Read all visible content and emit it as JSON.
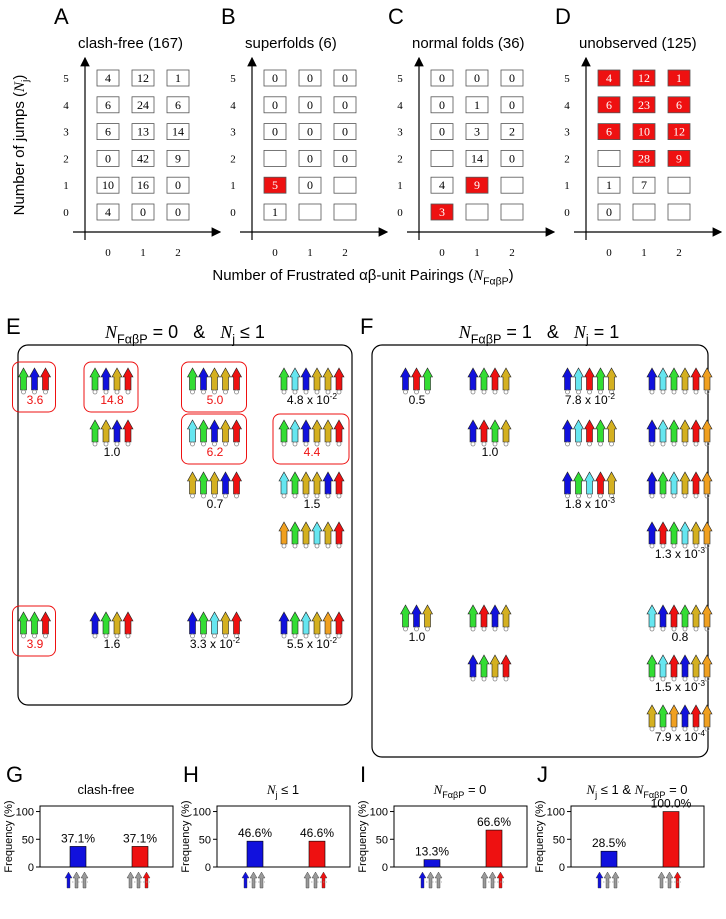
{
  "grid_axes": {
    "y_label": [
      {
        "text": "Number of jumps ("
      },
      {
        "text": "N",
        "italic": true
      },
      {
        "text": "j",
        "sub": true
      },
      {
        "text": ")"
      }
    ],
    "x_label": [
      {
        "text": "Number of Frustrated αβ-unit Pairings ("
      },
      {
        "text": "N",
        "italic": true
      },
      {
        "text": "FαβP",
        "sub": true
      },
      {
        "text": ")"
      }
    ],
    "xticks": [
      0,
      1,
      2
    ],
    "yticks": [
      0,
      1,
      2,
      3,
      4,
      5
    ],
    "highlight_color": "#ee1111"
  },
  "grid_panels": [
    {
      "letter": "A",
      "title": "clash-free (167)",
      "cells": [
        [
          4,
          0,
          0
        ],
        [
          10,
          16,
          0
        ],
        [
          0,
          42,
          9
        ],
        [
          6,
          13,
          14
        ],
        [
          6,
          24,
          6
        ],
        [
          4,
          12,
          1
        ]
      ],
      "highlighted": []
    },
    {
      "letter": "B",
      "title": "superfolds (6)",
      "cells": [
        [
          1,
          null,
          null
        ],
        [
          5,
          0,
          null
        ],
        [
          null,
          0,
          0
        ],
        [
          0,
          0,
          0
        ],
        [
          0,
          0,
          0
        ],
        [
          0,
          0,
          0
        ]
      ],
      "highlighted": [
        [
          1,
          0
        ]
      ]
    },
    {
      "letter": "C",
      "title": "normal folds (36)",
      "cells": [
        [
          3,
          null,
          null
        ],
        [
          4,
          9,
          null
        ],
        [
          null,
          14,
          0
        ],
        [
          0,
          3,
          2
        ],
        [
          0,
          1,
          0
        ],
        [
          0,
          0,
          0
        ]
      ],
      "highlighted": [
        [
          0,
          0
        ],
        [
          1,
          1
        ]
      ]
    },
    {
      "letter": "D",
      "title": "unobserved (125)",
      "cells": [
        [
          0,
          null,
          null
        ],
        [
          1,
          7,
          null
        ],
        [
          null,
          28,
          9
        ],
        [
          6,
          10,
          12
        ],
        [
          6,
          23,
          6
        ],
        [
          4,
          12,
          1
        ]
      ],
      "highlighted": [
        [
          2,
          1
        ],
        [
          2,
          2
        ],
        [
          3,
          0
        ],
        [
          3,
          1
        ],
        [
          3,
          2
        ],
        [
          4,
          0
        ],
        [
          4,
          1
        ],
        [
          4,
          2
        ],
        [
          5,
          0
        ],
        [
          5,
          1
        ],
        [
          5,
          2
        ]
      ]
    }
  ],
  "arrow_colors": {
    "b": "#1111dd",
    "g": "#33dd33",
    "r": "#ee1111",
    "y": "#d4b020",
    "c": "#66e6f0",
    "o": "#f0a020"
  },
  "topology_panels": [
    {
      "letter": "E",
      "title": [
        {
          "text": "N",
          "italic": true
        },
        {
          "text": "FαβP",
          "sub": true
        },
        {
          "text": " = 0   &   "
        },
        {
          "text": "N",
          "italic": true
        },
        {
          "text": "j",
          "sub": true
        },
        {
          "text": " ≤ 1"
        }
      ],
      "items": [
        {
          "strands": "gbr",
          "highlight": true,
          "label": "3.6"
        },
        {
          "strands": "ggr",
          "highlight": true,
          "label": "3.9"
        },
        {
          "strands": "gbyr",
          "highlight": true,
          "label": "14.8"
        },
        {
          "strands": "gybr",
          "label": "1.0"
        },
        {
          "strands": "bgyr",
          "label": "1.6"
        },
        {
          "strands": "gbyyr",
          "highlight": true,
          "label": "5.0"
        },
        {
          "strands": "cgbyr",
          "highlight": true,
          "label": "6.2"
        },
        {
          "strands": "ygybr",
          "label": "0.7"
        },
        {
          "strands": "bgcyr",
          "label": [
            {
              "text": "3.3 x 10"
            },
            {
              "text": "-2",
              "sup": true
            }
          ]
        },
        {
          "strands": "gcbyyr",
          "label": [
            {
              "text": "4.8 x 10"
            },
            {
              "text": "-2",
              "sup": true
            }
          ]
        },
        {
          "strands": "gcbyyr",
          "highlight": true,
          "label": "4.4"
        },
        {
          "strands": "cgyybr",
          "label": "1.5"
        },
        {
          "strands": "ogycyr"
        },
        {
          "strands": "bgcyor",
          "label": [
            {
              "text": "5.5 x 10"
            },
            {
              "text": "-2",
              "sup": true
            }
          ]
        }
      ]
    },
    {
      "letter": "F",
      "title": [
        {
          "text": "N",
          "italic": true
        },
        {
          "text": "FαβP",
          "sub": true
        },
        {
          "text": " = 1   &   "
        },
        {
          "text": "N",
          "italic": true
        },
        {
          "text": "j",
          "sub": true
        },
        {
          "text": " = 1"
        }
      ],
      "items": [
        {
          "strands": "brg",
          "label": "0.5"
        },
        {
          "strands": "bgry"
        },
        {
          "strands": "brgy",
          "label": "1.0"
        },
        {
          "strands": "gby",
          "label": "1.0"
        },
        {
          "strands": "grby"
        },
        {
          "strands": "bgyr"
        },
        {
          "strands": "bcrgy",
          "label": [
            {
              "text": "7.8 x 10"
            },
            {
              "text": "-2",
              "sup": true
            }
          ]
        },
        {
          "strands": "bcrgy"
        },
        {
          "strands": "bgcry",
          "label": [
            {
              "text": "1.8 x 10"
            },
            {
              "text": "-3",
              "sup": true
            }
          ]
        },
        {
          "strands": "bcgyro"
        },
        {
          "strands": "bcgyro"
        },
        {
          "strands": "bgcyro"
        },
        {
          "strands": "brgcyo",
          "label": [
            {
              "text": "1.3 x 10"
            },
            {
              "text": "-3",
              "sup": true
            }
          ]
        },
        {
          "strands": "cbrgyo",
          "label": "0.8"
        },
        {
          "strands": "gcrbyo",
          "label": [
            {
              "text": "1.5 x 10"
            },
            {
              "text": "-3",
              "sup": true
            }
          ]
        },
        {
          "strands": "ygobro",
          "label": [
            {
              "text": "7.9 x 10"
            },
            {
              "text": "-4",
              "sup": true
            }
          ]
        }
      ]
    }
  ],
  "chart_data": [
    {
      "type": "bar",
      "letter": "G",
      "title": [
        {
          "text": "clash-free"
        }
      ],
      "y_label": "Frequency (%)",
      "ylim": [
        0,
        110
      ],
      "yticks": [
        0,
        50,
        100
      ],
      "values": [
        37.1,
        37.1
      ],
      "value_labels": [
        "37.1%",
        "37.1%"
      ],
      "colors": [
        "#1111dd",
        "#ee1111"
      ]
    },
    {
      "type": "bar",
      "letter": "H",
      "title": [
        {
          "text": "N",
          "italic": true
        },
        {
          "text": "j",
          "sub": true
        },
        {
          "text": " ≤ 1"
        }
      ],
      "y_label": "Frequency (%)",
      "ylim": [
        0,
        110
      ],
      "yticks": [
        0,
        50,
        100
      ],
      "values": [
        46.6,
        46.6
      ],
      "value_labels": [
        "46.6%",
        "46.6%"
      ],
      "colors": [
        "#1111dd",
        "#ee1111"
      ]
    },
    {
      "type": "bar",
      "letter": "I",
      "title": [
        {
          "text": "N",
          "italic": true
        },
        {
          "text": "FαβP",
          "sub": true
        },
        {
          "text": " = 0"
        }
      ],
      "y_label": "Frequency (%)",
      "ylim": [
        0,
        110
      ],
      "yticks": [
        0,
        50,
        100
      ],
      "values": [
        13.3,
        66.6
      ],
      "value_labels": [
        "13.3%",
        "66.6%"
      ],
      "colors": [
        "#1111dd",
        "#ee1111"
      ]
    },
    {
      "type": "bar",
      "letter": "J",
      "title": [
        {
          "text": "N",
          "italic": true
        },
        {
          "text": "j",
          "sub": true
        },
        {
          "text": " ≤ 1 & "
        },
        {
          "text": "N",
          "italic": true
        },
        {
          "text": "FαβP",
          "sub": true
        },
        {
          "text": " = 0"
        }
      ],
      "y_label": "Frequency (%)",
      "ylim": [
        0,
        110
      ],
      "yticks": [
        0,
        50,
        100
      ],
      "values": [
        28.5,
        100.0
      ],
      "value_labels": [
        "28.5%",
        "100.0%"
      ],
      "colors": [
        "#1111dd",
        "#ee1111"
      ]
    }
  ]
}
